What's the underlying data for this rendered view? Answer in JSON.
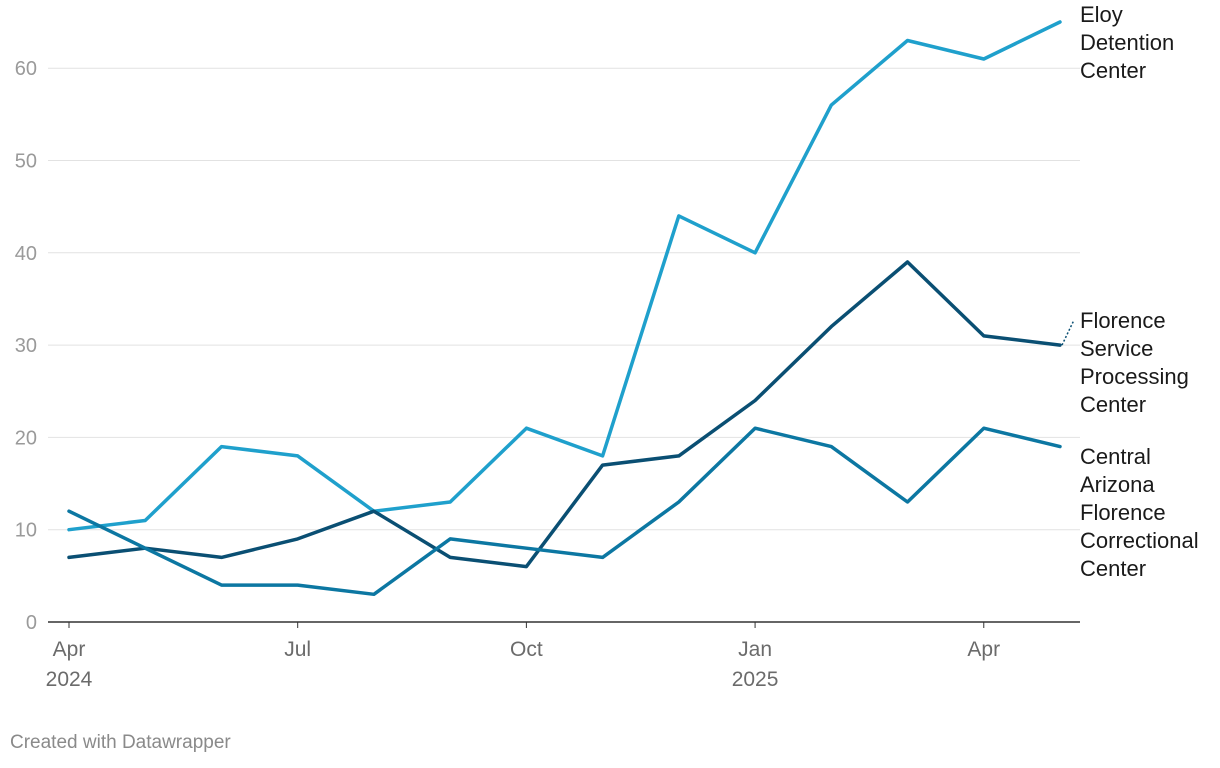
{
  "chart_data": {
    "type": "line",
    "x": [
      "2024-04",
      "2024-05",
      "2024-06",
      "2024-07",
      "2024-08",
      "2024-09",
      "2024-10",
      "2024-11",
      "2024-12",
      "2025-01",
      "2025-02",
      "2025-03",
      "2025-04",
      "2025-05"
    ],
    "x_ticks": [
      {
        "x": "2024-04",
        "label": "Apr",
        "sub": "2024"
      },
      {
        "x": "2024-07",
        "label": "Jul",
        "sub": ""
      },
      {
        "x": "2024-10",
        "label": "Oct",
        "sub": ""
      },
      {
        "x": "2025-01",
        "label": "Jan",
        "sub": "2025"
      },
      {
        "x": "2025-04",
        "label": "Apr",
        "sub": ""
      }
    ],
    "ylim": [
      0,
      65
    ],
    "y_ticks": [
      0,
      10,
      20,
      30,
      40,
      50,
      60
    ],
    "grid": true,
    "series": [
      {
        "name": "Eloy Detention Center",
        "label_lines": [
          "Eloy",
          "Detention",
          "Center"
        ],
        "color": "#1fa0cc",
        "values": [
          10,
          11,
          19,
          18,
          12,
          13,
          21,
          18,
          44,
          40,
          56,
          63,
          61,
          65
        ]
      },
      {
        "name": "Florence Service Processing Center",
        "label_lines": [
          "Florence",
          "Service",
          "Processing",
          "Center"
        ],
        "color": "#0a4f73",
        "values": [
          7,
          8,
          7,
          9,
          12,
          7,
          6,
          17,
          18,
          24,
          32,
          39,
          31,
          30
        ]
      },
      {
        "name": "Central Arizona Florence Correctional Center",
        "label_lines": [
          "Central",
          "Arizona",
          "Florence",
          "Correctional",
          "Center"
        ],
        "color": "#0c77a2",
        "values": [
          12,
          8,
          4,
          4,
          3,
          9,
          8,
          7,
          13,
          21,
          19,
          13,
          21,
          19
        ]
      }
    ]
  },
  "footer": {
    "credit": "Created with Datawrapper"
  }
}
